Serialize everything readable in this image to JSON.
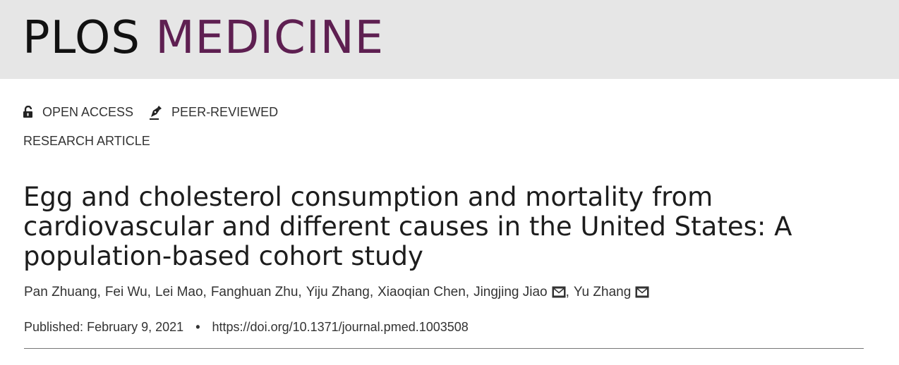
{
  "header": {
    "logo_part1": "PLOS",
    "logo_part2": "MEDICINE",
    "logo_color": "#5e1f51"
  },
  "badges": {
    "open_access": {
      "label": "OPEN ACCESS",
      "icon": "unlocked-padlock-icon"
    },
    "peer_reviewed": {
      "label": "PEER-REVIEWED",
      "icon": "pen-nib-icon"
    }
  },
  "article": {
    "type": "RESEARCH ARTICLE",
    "title": "Egg and cholesterol consumption and mortality from cardiovascular and different causes in the United States: A population-based cohort study",
    "authors": [
      {
        "name": "Pan Zhuang",
        "corresponding": false
      },
      {
        "name": "Fei Wu",
        "corresponding": false
      },
      {
        "name": "Lei Mao",
        "corresponding": false
      },
      {
        "name": "Fanghuan Zhu",
        "corresponding": false
      },
      {
        "name": "Yiju Zhang",
        "corresponding": false
      },
      {
        "name": "Xiaoqian Chen",
        "corresponding": false
      },
      {
        "name": "Jingjing Jiao",
        "corresponding": true
      },
      {
        "name": "Yu Zhang",
        "corresponding": true
      }
    ],
    "published_label": "Published:",
    "published_date": "February 9, 2021",
    "separator": "•",
    "doi": "https://doi.org/10.1371/journal.pmed.1003508"
  }
}
